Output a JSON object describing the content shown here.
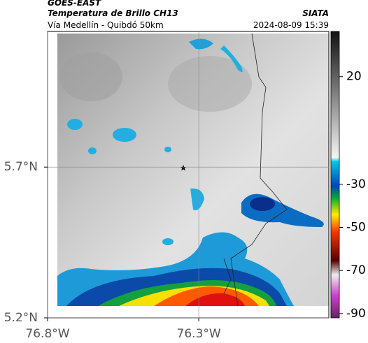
{
  "chart_data": {
    "type": "map",
    "title": "GOES-EAST",
    "subtitle": "Temperatura de Brillo CH13",
    "caption": "Vía Medellín - Quibdó 50km",
    "source": "SIATA",
    "timestamp": "2024-08-09 15:39",
    "xlim": [
      -76.8,
      -75.87
    ],
    "xticks": [
      {
        "value": -76.8,
        "label": "76.8°W"
      },
      {
        "value": -76.3,
        "label": "76.3°W"
      }
    ],
    "ylim": [
      5.2,
      6.15
    ],
    "yticks": [
      {
        "value": 5.7,
        "label": "5.7°N"
      },
      {
        "value": 5.2,
        "label": "5.2°N"
      }
    ],
    "grid": true,
    "colorbar": {
      "lim": [
        -92,
        41
      ],
      "ticks": [
        20,
        -30,
        -50,
        -70,
        -90
      ]
    }
  }
}
